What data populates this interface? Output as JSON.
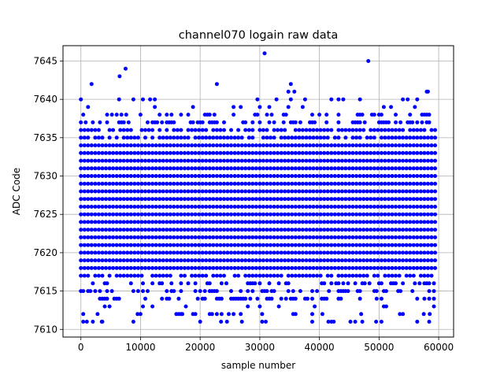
{
  "chart_data": {
    "type": "scatter",
    "title": "channel070 logain raw data",
    "xlabel": "sample number",
    "ylabel": "ADC Code",
    "xlim": [
      -3000,
      62500
    ],
    "ylim": [
      7609,
      7647
    ],
    "xticks": [
      0,
      10000,
      20000,
      30000,
      40000,
      50000,
      60000
    ],
    "yticks": [
      7610,
      7615,
      7620,
      7625,
      7630,
      7635,
      7640,
      7645
    ],
    "grid": true,
    "marker_color": "#0000ff",
    "sample_range": [
      0,
      59500
    ],
    "dense_codes": [
      7618,
      7619,
      7620,
      7621,
      7622,
      7623,
      7624,
      7625,
      7626,
      7627,
      7628,
      7629,
      7630,
      7631,
      7632,
      7633,
      7634
    ],
    "moderate_codes": [
      7617,
      7635,
      7636
    ],
    "sparse_codes": [
      7614,
      7615,
      7616,
      7637,
      7638
    ],
    "rare_codes": [
      7611,
      7612,
      7613,
      7639,
      7640
    ],
    "outliers": [
      {
        "x": 1000,
        "y": 7611
      },
      {
        "x": 1800,
        "y": 7642
      },
      {
        "x": 3500,
        "y": 7611
      },
      {
        "x": 6500,
        "y": 7643
      },
      {
        "x": 7500,
        "y": 7644
      },
      {
        "x": 9500,
        "y": 7612
      },
      {
        "x": 17000,
        "y": 7612
      },
      {
        "x": 22000,
        "y": 7612
      },
      {
        "x": 22800,
        "y": 7642
      },
      {
        "x": 23500,
        "y": 7611
      },
      {
        "x": 24500,
        "y": 7611
      },
      {
        "x": 27000,
        "y": 7611
      },
      {
        "x": 30800,
        "y": 7646
      },
      {
        "x": 31000,
        "y": 7611
      },
      {
        "x": 34800,
        "y": 7641
      },
      {
        "x": 35200,
        "y": 7642
      },
      {
        "x": 35800,
        "y": 7641
      },
      {
        "x": 36000,
        "y": 7612
      },
      {
        "x": 40500,
        "y": 7612
      },
      {
        "x": 41500,
        "y": 7611
      },
      {
        "x": 46000,
        "y": 7611
      },
      {
        "x": 47000,
        "y": 7612
      },
      {
        "x": 48200,
        "y": 7645
      },
      {
        "x": 49500,
        "y": 7611
      },
      {
        "x": 53500,
        "y": 7612
      },
      {
        "x": 54000,
        "y": 7612
      },
      {
        "x": 57500,
        "y": 7612
      },
      {
        "x": 58000,
        "y": 7641
      },
      {
        "x": 58200,
        "y": 7641
      },
      {
        "x": 58500,
        "y": 7612
      }
    ]
  }
}
